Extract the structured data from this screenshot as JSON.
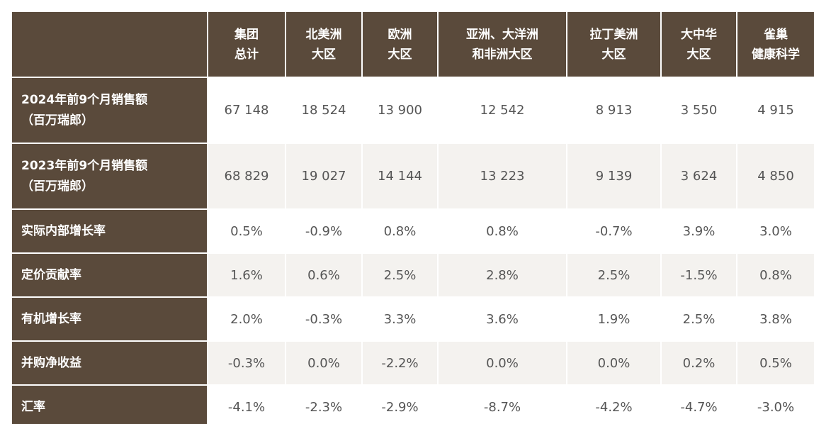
{
  "chart_data": {
    "type": "table",
    "columns": [
      {
        "lines": [
          "集团",
          "总计"
        ]
      },
      {
        "lines": [
          "北美洲",
          "大区"
        ]
      },
      {
        "lines": [
          "欧洲",
          "大区"
        ]
      },
      {
        "lines": [
          "亚洲、大洋洲",
          "和非洲大区"
        ]
      },
      {
        "lines": [
          "拉丁美洲",
          "大区"
        ]
      },
      {
        "lines": [
          "大中华",
          "大区"
        ]
      },
      {
        "lines": [
          "雀巢",
          "健康科学"
        ]
      }
    ],
    "rows": [
      {
        "label": [
          "2024年前9个月销售额",
          "（百万瑞郎）"
        ],
        "values": [
          "67 148",
          "18 524",
          "13 900",
          "12 542",
          "8 913",
          "3 550",
          "4 915"
        ]
      },
      {
        "label": [
          "2023年前9个月销售额",
          "（百万瑞郎）"
        ],
        "values": [
          "68 829",
          "19 027",
          "14 144",
          "13 223",
          "9 139",
          "3 624",
          "4 850"
        ]
      },
      {
        "label": [
          "实际内部增长率"
        ],
        "values": [
          "0.5%",
          "-0.9%",
          "0.8%",
          "0.8%",
          "-0.7%",
          "3.9%",
          "3.0%"
        ]
      },
      {
        "label": [
          "定价贡献率"
        ],
        "values": [
          "1.6%",
          "0.6%",
          "2.5%",
          "2.8%",
          "2.5%",
          "-1.5%",
          "0.8%"
        ]
      },
      {
        "label": [
          "有机增长率"
        ],
        "values": [
          "2.0%",
          "-0.3%",
          "3.3%",
          "3.6%",
          "1.9%",
          "2.5%",
          "3.8%"
        ]
      },
      {
        "label": [
          "并购净收益"
        ],
        "values": [
          "-0.3%",
          "0.0%",
          "-2.2%",
          "0.0%",
          "0.0%",
          "0.2%",
          "0.5%"
        ]
      },
      {
        "label": [
          "汇率"
        ],
        "values": [
          "-4.1%",
          "-2.3%",
          "-2.9%",
          "-8.7%",
          "-4.2%",
          "-4.7%",
          "-3.0%"
        ]
      }
    ]
  },
  "colors": {
    "header_background": "#5a4a3b",
    "header_text": "#ffffff",
    "cell_text": "#555555",
    "row_band_light": "#ffffff",
    "row_band_gray": "#f4f2ef"
  }
}
